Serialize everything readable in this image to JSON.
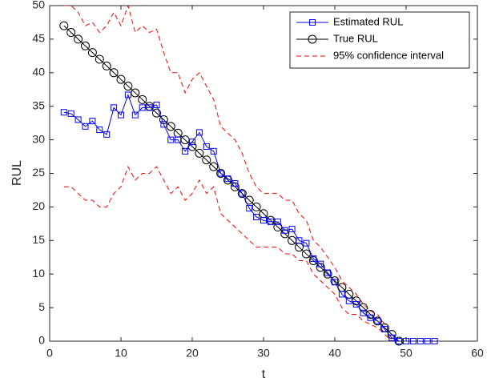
{
  "chart_data": {
    "type": "line",
    "xlabel": "t",
    "ylabel": "RUL",
    "xlim": [
      0,
      60
    ],
    "xticks": [
      0,
      10,
      20,
      30,
      40,
      50,
      60
    ],
    "ylim": [
      0,
      50
    ],
    "yticks": [
      0,
      5,
      10,
      15,
      20,
      25,
      30,
      35,
      40,
      45,
      50
    ],
    "legend": "top-right",
    "x": [
      2,
      3,
      4,
      5,
      6,
      7,
      8,
      9,
      10,
      11,
      12,
      13,
      14,
      15,
      16,
      17,
      18,
      19,
      20,
      21,
      22,
      23,
      24,
      25,
      26,
      27,
      28,
      29,
      30,
      31,
      32,
      33,
      34,
      35,
      36,
      37,
      38,
      39,
      40,
      41,
      42,
      43,
      44,
      45,
      46,
      47,
      48,
      49,
      50,
      51,
      52,
      53,
      54
    ],
    "series": [
      {
        "name": "Estimated RUL",
        "color": "#0000ff",
        "marker": "square",
        "values": [
          34.1,
          33.9,
          33,
          32,
          32.8,
          31.5,
          30.8,
          34.8,
          33.7,
          36.7,
          33.7,
          34.8,
          34.8,
          35.2,
          32.3,
          30,
          30,
          28.3,
          29.7,
          31.1,
          29,
          28.3,
          25,
          24.2,
          23.5,
          22,
          19.8,
          18.5,
          18,
          17.8,
          17.8,
          16.5,
          16.7,
          15,
          14.6,
          12.3,
          11.5,
          10.2,
          8.8,
          7,
          6,
          5.5,
          4.2,
          3.5,
          3,
          1.8,
          0.5,
          0,
          0,
          0,
          0,
          0,
          0
        ]
      },
      {
        "name": "True RUL",
        "color": "#000000",
        "marker": "circle",
        "values": [
          47,
          46,
          45,
          44,
          43,
          42,
          41,
          40,
          39,
          38,
          37,
          36,
          35,
          34,
          33,
          32,
          31,
          30,
          29,
          28,
          27,
          26,
          25,
          24,
          23,
          22,
          21,
          20,
          19,
          18,
          17,
          16,
          15,
          14,
          13,
          12,
          11,
          10,
          9,
          8,
          7,
          6,
          5,
          4,
          3,
          2,
          1,
          0,
          null,
          null,
          null,
          null,
          null
        ]
      },
      {
        "name": "95% confidence interval",
        "color": "#ff0000",
        "dashed": true,
        "values": [
          50,
          50,
          49,
          47,
          47.5,
          46,
          47,
          49,
          47,
          50,
          46,
          47,
          46,
          46.5,
          43,
          40,
          40,
          37,
          39,
          40,
          38,
          36,
          32,
          31,
          30,
          28,
          25,
          23,
          22,
          22,
          22,
          21,
          21,
          19,
          18,
          15,
          14,
          12.5,
          11,
          9,
          8,
          7,
          5.5,
          4.5,
          4,
          2.5,
          1,
          0,
          0,
          0,
          0,
          0,
          0
        ],
        "lower": [
          23,
          23,
          22,
          21,
          21,
          20,
          20,
          22,
          23,
          26,
          24,
          25,
          25,
          26,
          24,
          22,
          23,
          21,
          22,
          24,
          22,
          23,
          19,
          18,
          17,
          16,
          15,
          14,
          14,
          14,
          14,
          13,
          13,
          12,
          12,
          10,
          9,
          8,
          7,
          5,
          4,
          4,
          3,
          2.5,
          2,
          1,
          0,
          0,
          0,
          0,
          0,
          0,
          0
        ]
      }
    ]
  }
}
